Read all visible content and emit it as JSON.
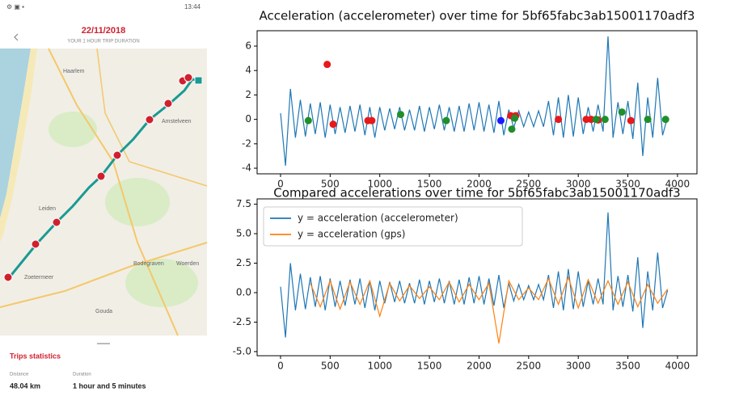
{
  "phone": {
    "time": "13:44",
    "date": "22/11/2018",
    "subtitle": "YOUR 1 HOUR TRIP DURATION",
    "map_labels": [
      "Haarlem",
      "Amstelveen",
      "Leiden",
      "Zoetermeer",
      "Gouda",
      "Bodegraven",
      "Woerden"
    ],
    "stats": {
      "title": "Trips statistics",
      "distance_label": "Distance",
      "distance": "48.04 km",
      "duration_label": "Duration",
      "duration": "1 hour and 5 minutes"
    }
  },
  "chart_data": [
    {
      "type": "line",
      "title": "Acceleration (accelerometer) over time for 5bf65fabc3ab15001170adf3",
      "xlim": [
        -236,
        4196
      ],
      "xticks": [
        0,
        500,
        1000,
        1500,
        2000,
        2500,
        3000,
        3500,
        4000
      ],
      "ylim": [
        -4.46,
        7.26
      ],
      "yticks": [
        -4,
        -2,
        0,
        2,
        4,
        6
      ],
      "grid": false,
      "series": [
        {
          "color": "#1f77b4",
          "x": [
            0,
            50,
            100,
            150,
            200,
            250,
            300,
            350,
            400,
            450,
            500,
            550,
            600,
            650,
            700,
            750,
            800,
            850,
            900,
            950,
            1000,
            1050,
            1100,
            1150,
            1200,
            1250,
            1300,
            1350,
            1400,
            1450,
            1500,
            1550,
            1600,
            1650,
            1700,
            1750,
            1800,
            1850,
            1900,
            1950,
            2000,
            2050,
            2100,
            2150,
            2200,
            2250,
            2300,
            2350,
            2400,
            2450,
            2500,
            2550,
            2600,
            2650,
            2700,
            2750,
            2800,
            2850,
            2900,
            2950,
            3000,
            3050,
            3100,
            3150,
            3200,
            3250,
            3300,
            3350,
            3400,
            3450,
            3500,
            3550,
            3600,
            3650,
            3700,
            3750,
            3800,
            3850,
            3900
          ],
          "values": [
            0.5,
            -3.8,
            2.5,
            -1.5,
            1.6,
            -1.4,
            1.3,
            -1.2,
            1.4,
            -1.5,
            1.2,
            -1.2,
            1.0,
            -1.1,
            1.1,
            -1.0,
            1.2,
            -1.3,
            1.0,
            -1.5,
            1.0,
            -0.9,
            0.9,
            -0.8,
            1.0,
            -0.9,
            0.8,
            -0.9,
            1.1,
            -1.0,
            1.0,
            -0.8,
            1.2,
            -0.9,
            1.0,
            -1.0,
            1.1,
            -1.0,
            1.3,
            -0.9,
            1.4,
            -1.0,
            1.2,
            -1.1,
            1.5,
            -1.3,
            0.8,
            -0.7,
            0.7,
            -0.6,
            0.6,
            -0.6,
            0.7,
            -0.6,
            1.5,
            -1.3,
            1.8,
            -1.5,
            2.0,
            -1.4,
            1.8,
            -1.2,
            1.0,
            -1.0,
            1.2,
            -1.0,
            6.8,
            -1.5,
            1.4,
            -1.2,
            1.5,
            -1.6,
            3.0,
            -3.0,
            1.8,
            -1.5,
            3.4,
            -1.3,
            0.2
          ]
        },
        {
          "type": "scatter",
          "color": "#e8191b",
          "x": [
            470,
            530,
            880,
            920,
            2320,
            2370,
            2800,
            3080,
            3130,
            3200,
            3530
          ],
          "values": [
            4.5,
            -0.4,
            -0.1,
            -0.1,
            0.3,
            0.3,
            0.0,
            0.0,
            0.0,
            -0.05,
            -0.1
          ]
        },
        {
          "type": "scatter",
          "color": "#1f8f2a",
          "x": [
            280,
            1210,
            1670,
            2330,
            2360,
            3180,
            3270,
            3440,
            3700,
            3880
          ],
          "values": [
            -0.1,
            0.4,
            -0.1,
            -0.8,
            0.1,
            0.0,
            0.0,
            0.6,
            0.0,
            0.0
          ]
        },
        {
          "type": "scatter",
          "color": "#1a1aff",
          "x": [
            2220
          ],
          "values": [
            -0.1
          ]
        }
      ]
    },
    {
      "type": "line",
      "title": "Compared accelerations over time for 5bf65fabc3ab15001170adf3",
      "xlim": [
        -236,
        4196
      ],
      "xticks": [
        0,
        500,
        1000,
        1500,
        2000,
        2500,
        3000,
        3500,
        4000
      ],
      "ylim": [
        -5.35,
        7.95
      ],
      "yticks": [
        {
          "value": -5,
          "label": "-5.0"
        },
        {
          "value": -2.5,
          "label": "-2.5"
        },
        {
          "value": 0,
          "label": "0.0"
        },
        {
          "value": 2.5,
          "label": "2.5"
        },
        {
          "value": 5,
          "label": "5.0"
        },
        {
          "value": 7.5,
          "label": "7.5"
        }
      ],
      "grid": false,
      "legend": "upper left",
      "series": [
        {
          "name": "y =  acceleration (accelerometer)",
          "color": "#1f77b4",
          "x": [
            0,
            50,
            100,
            150,
            200,
            250,
            300,
            350,
            400,
            450,
            500,
            550,
            600,
            650,
            700,
            750,
            800,
            850,
            900,
            950,
            1000,
            1050,
            1100,
            1150,
            1200,
            1250,
            1300,
            1350,
            1400,
            1450,
            1500,
            1550,
            1600,
            1650,
            1700,
            1750,
            1800,
            1850,
            1900,
            1950,
            2000,
            2050,
            2100,
            2150,
            2200,
            2250,
            2300,
            2350,
            2400,
            2450,
            2500,
            2550,
            2600,
            2650,
            2700,
            2750,
            2800,
            2850,
            2900,
            2950,
            3000,
            3050,
            3100,
            3150,
            3200,
            3250,
            3300,
            3350,
            3400,
            3450,
            3500,
            3550,
            3600,
            3650,
            3700,
            3750,
            3800,
            3850,
            3900
          ],
          "values": [
            0.5,
            -3.8,
            2.5,
            -1.5,
            1.6,
            -1.4,
            1.3,
            -1.2,
            1.4,
            -1.5,
            1.2,
            -1.2,
            1.0,
            -1.1,
            1.1,
            -1.0,
            1.2,
            -1.3,
            1.0,
            -1.5,
            1.0,
            -0.9,
            0.9,
            -0.8,
            1.0,
            -0.9,
            0.8,
            -0.9,
            1.1,
            -1.0,
            1.0,
            -0.8,
            1.2,
            -0.9,
            1.0,
            -1.0,
            1.1,
            -1.0,
            1.3,
            -0.9,
            1.4,
            -1.0,
            1.2,
            -1.1,
            1.5,
            -1.3,
            0.8,
            -0.7,
            0.7,
            -0.6,
            0.6,
            -0.6,
            0.7,
            -0.6,
            1.5,
            -1.3,
            1.8,
            -1.5,
            2.0,
            -1.4,
            1.8,
            -1.2,
            1.0,
            -1.0,
            1.2,
            -1.0,
            6.8,
            -1.5,
            1.4,
            -1.2,
            1.5,
            -1.6,
            3.0,
            -3.0,
            1.8,
            -1.5,
            3.4,
            -1.3,
            0.2
          ]
        },
        {
          "name": "y = acceleration (gps)",
          "color": "#ff7f0e",
          "x": [
            300,
            400,
            500,
            600,
            700,
            800,
            900,
            1000,
            1100,
            1200,
            1300,
            1400,
            1500,
            1600,
            1700,
            1800,
            1900,
            2000,
            2100,
            2200,
            2300,
            2400,
            2500,
            2600,
            2700,
            2800,
            2900,
            3000,
            3100,
            3200,
            3300,
            3400,
            3500,
            3600,
            3700,
            3800,
            3900
          ],
          "values": [
            0.8,
            -1.2,
            1.0,
            -1.4,
            0.9,
            -1.0,
            1.0,
            -2.0,
            0.8,
            -0.7,
            0.6,
            -0.5,
            0.5,
            -0.6,
            0.9,
            -0.8,
            0.7,
            -0.6,
            0.8,
            -4.3,
            1.0,
            -0.6,
            0.4,
            -0.6,
            1.2,
            -1.0,
            1.3,
            -1.3,
            1.1,
            -0.9,
            1.0,
            -1.0,
            0.9,
            -1.2,
            0.7,
            -0.9,
            0.3
          ]
        }
      ]
    }
  ]
}
